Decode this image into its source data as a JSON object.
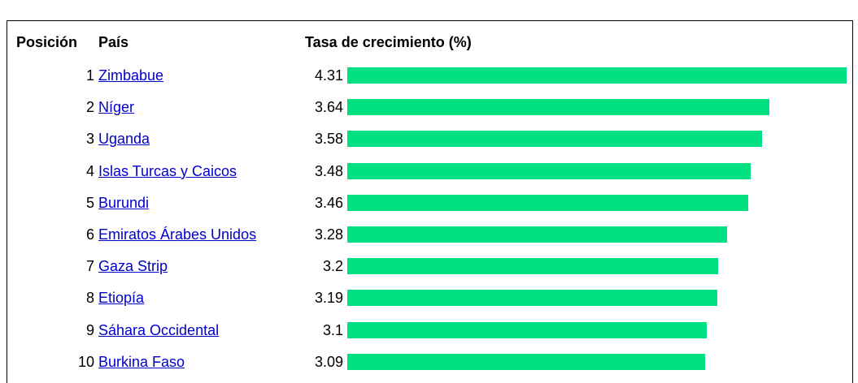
{
  "table": {
    "headers": [
      "Posición",
      "País",
      "Tasa de crecimiento (%)"
    ],
    "rows": [
      {
        "rank": 1,
        "country": "Zimbabue",
        "value": 4.31
      },
      {
        "rank": 2,
        "country": "Níger",
        "value": 3.64
      },
      {
        "rank": 3,
        "country": "Uganda",
        "value": 3.58
      },
      {
        "rank": 4,
        "country": "Islas Turcas y Caicos",
        "value": 3.48
      },
      {
        "rank": 5,
        "country": "Burundi",
        "value": 3.46
      },
      {
        "rank": 6,
        "country": "Emiratos Árabes Unidos",
        "value": 3.28
      },
      {
        "rank": 7,
        "country": "Gaza Strip",
        "value": 3.2
      },
      {
        "rank": 8,
        "country": "Etiopía",
        "value": 3.19
      },
      {
        "rank": 9,
        "country": "Sáhara Occidental",
        "value": 3.1
      },
      {
        "rank": 10,
        "country": "Burkina Faso",
        "value": 3.09
      }
    ],
    "bar_color": "#00e080"
  }
}
